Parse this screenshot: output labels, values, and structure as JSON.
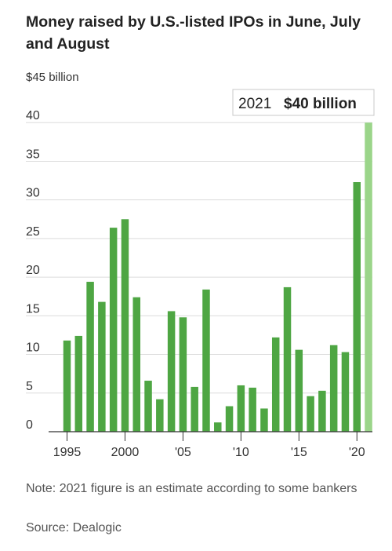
{
  "title": "Money raised by U.S.-listed IPOs in June, July and August",
  "note": "Note: 2021 figure is an estimate according to some bankers",
  "source": "Source: Dealogic",
  "chart_data": {
    "type": "bar",
    "title": "Money raised by U.S.-listed IPOs in June, July and August",
    "xlabel": "",
    "ylabel": "",
    "unit_label": "$45 billion",
    "ylim": [
      0,
      45
    ],
    "y_ticks": [
      0,
      5,
      10,
      15,
      20,
      25,
      30,
      35,
      40
    ],
    "y_tick_labels": [
      "0",
      "5",
      "10",
      "15",
      "20",
      "25",
      "30",
      "35",
      "40"
    ],
    "x_ticks": [
      1995,
      2000,
      2005,
      2010,
      2015,
      2020
    ],
    "x_tick_labels": [
      "1995",
      "2000",
      "'05",
      "'10",
      "'15",
      "'20"
    ],
    "grid": true,
    "categories": [
      1995,
      1996,
      1997,
      1998,
      1999,
      2000,
      2001,
      2002,
      2003,
      2004,
      2005,
      2006,
      2007,
      2008,
      2009,
      2010,
      2011,
      2012,
      2013,
      2014,
      2015,
      2016,
      2017,
      2018,
      2019,
      2020,
      2021
    ],
    "values": [
      11.8,
      12.4,
      19.4,
      16.8,
      26.4,
      27.5,
      17.4,
      6.6,
      4.2,
      15.6,
      14.8,
      5.8,
      18.4,
      1.2,
      3.3,
      6.0,
      5.7,
      3.0,
      12.2,
      18.7,
      10.6,
      4.6,
      5.3,
      11.2,
      10.3,
      32.3,
      40.0
    ],
    "colors": {
      "bar": "#4ea643",
      "highlight": "#9bd58a",
      "grid": "#dcdcdc",
      "axis": "#333333"
    },
    "highlight": {
      "category": 2021,
      "year_label": "2021",
      "value_label": "$40 billion"
    }
  }
}
